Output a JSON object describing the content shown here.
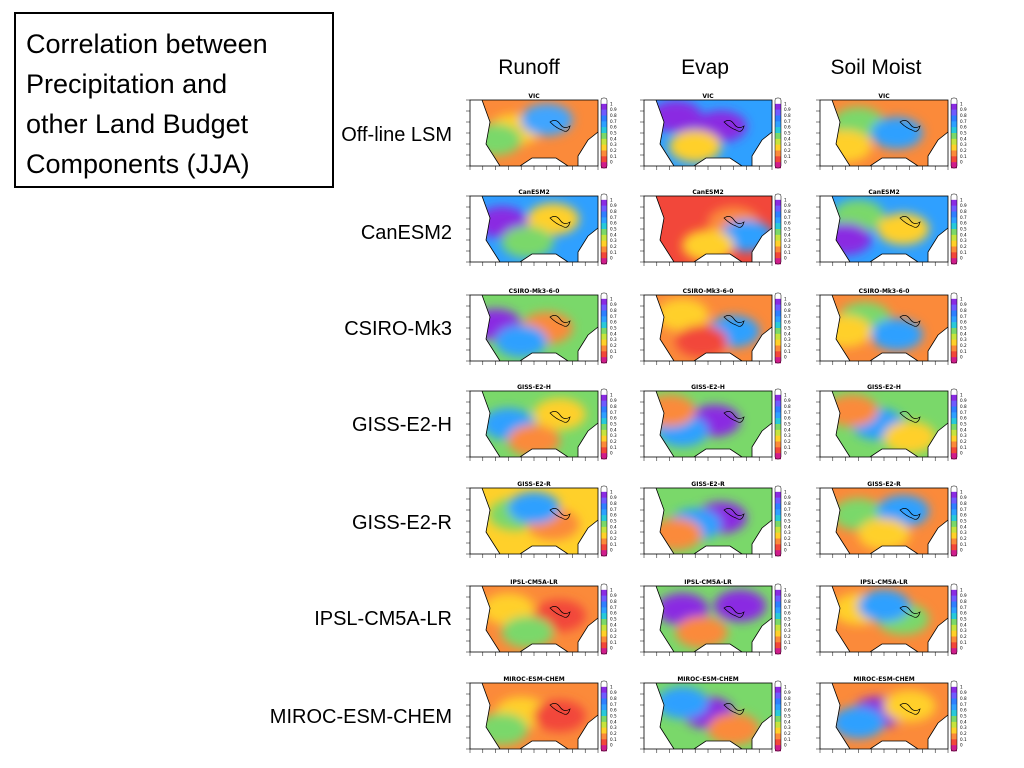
{
  "title_lines": [
    "Correlation between",
    "Precipitation and",
    "other Land Budget",
    "Components (JJA)"
  ],
  "columns": [
    "Runoff",
    "Evap",
    "Soil Moist"
  ],
  "rows": [
    {
      "label": "Off-line LSM",
      "panel_title": "VIC",
      "fields": [
        {
          "base": "#fb8a3a",
          "blobs": [
            [
              "#ffd02a",
              0.35,
              0.45
            ],
            [
              "#7ad86a",
              0.2,
              0.6
            ],
            [
              "#3fa5ff",
              0.6,
              0.3
            ]
          ]
        },
        {
          "base": "#2fa0ff",
          "blobs": [
            [
              "#8a2be2",
              0.25,
              0.25
            ],
            [
              "#8a2be2",
              0.6,
              0.4
            ],
            [
              "#ffd02a",
              0.4,
              0.7
            ]
          ]
        },
        {
          "base": "#fb8a3a",
          "blobs": [
            [
              "#7ad86a",
              0.3,
              0.35
            ],
            [
              "#2fa0ff",
              0.6,
              0.5
            ],
            [
              "#ffd02a",
              0.2,
              0.7
            ]
          ]
        }
      ]
    },
    {
      "label": "CanESM2",
      "panel_title": "CanESM2",
      "fields": [
        {
          "base": "#2fa0ff",
          "blobs": [
            [
              "#8a2be2",
              0.25,
              0.4
            ],
            [
              "#ffd02a",
              0.65,
              0.35
            ],
            [
              "#7ad86a",
              0.45,
              0.7
            ]
          ]
        },
        {
          "base": "#f2473a",
          "blobs": [
            [
              "#fb8a3a",
              0.7,
              0.4
            ],
            [
              "#2fa0ff",
              0.8,
              0.6
            ],
            [
              "#ffd02a",
              0.5,
              0.75
            ]
          ]
        },
        {
          "base": "#2fa0ff",
          "blobs": [
            [
              "#7ad86a",
              0.3,
              0.3
            ],
            [
              "#ffd02a",
              0.65,
              0.5
            ],
            [
              "#8a2be2",
              0.2,
              0.65
            ]
          ]
        }
      ]
    },
    {
      "label": "CSIRO-Mk3",
      "panel_title": "CSIRO-Mk3-6-0",
      "fields": [
        {
          "base": "#7ad86a",
          "blobs": [
            [
              "#8a2be2",
              0.2,
              0.45
            ],
            [
              "#fb8a3a",
              0.6,
              0.5
            ],
            [
              "#2fa0ff",
              0.4,
              0.7
            ]
          ]
        },
        {
          "base": "#fb8a3a",
          "blobs": [
            [
              "#ffd02a",
              0.3,
              0.3
            ],
            [
              "#2fa0ff",
              0.7,
              0.55
            ],
            [
              "#f2473a",
              0.45,
              0.7
            ]
          ]
        },
        {
          "base": "#fb8a3a",
          "blobs": [
            [
              "#7ad86a",
              0.35,
              0.35
            ],
            [
              "#2fa0ff",
              0.6,
              0.6
            ],
            [
              "#ffd02a",
              0.2,
              0.55
            ]
          ]
        }
      ]
    },
    {
      "label": "GISS-E2-H",
      "panel_title": "GISS-E2-H",
      "fields": [
        {
          "base": "#7ad86a",
          "blobs": [
            [
              "#2fa0ff",
              0.3,
              0.5
            ],
            [
              "#ffd02a",
              0.7,
              0.35
            ],
            [
              "#fb8a3a",
              0.5,
              0.75
            ]
          ]
        },
        {
          "base": "#7ad86a",
          "blobs": [
            [
              "#8a2be2",
              0.55,
              0.45
            ],
            [
              "#2fa0ff",
              0.3,
              0.6
            ],
            [
              "#fb8a3a",
              0.2,
              0.3
            ]
          ]
        },
        {
          "base": "#7ad86a",
          "blobs": [
            [
              "#2fa0ff",
              0.45,
              0.5
            ],
            [
              "#ffd02a",
              0.7,
              0.7
            ],
            [
              "#fb8a3a",
              0.25,
              0.3
            ]
          ]
        }
      ]
    },
    {
      "label": "GISS-E2-R",
      "panel_title": "GISS-E2-R",
      "fields": [
        {
          "base": "#ffd02a",
          "blobs": [
            [
              "#7ad86a",
              0.35,
              0.4
            ],
            [
              "#fb8a3a",
              0.65,
              0.55
            ],
            [
              "#2fa0ff",
              0.5,
              0.3
            ]
          ]
        },
        {
          "base": "#7ad86a",
          "blobs": [
            [
              "#8a2be2",
              0.6,
              0.45
            ],
            [
              "#2fa0ff",
              0.4,
              0.55
            ],
            [
              "#fb8a3a",
              0.25,
              0.7
            ]
          ]
        },
        {
          "base": "#fb8a3a",
          "blobs": [
            [
              "#7ad86a",
              0.3,
              0.4
            ],
            [
              "#2fa0ff",
              0.65,
              0.35
            ],
            [
              "#ffd02a",
              0.5,
              0.7
            ]
          ]
        }
      ]
    },
    {
      "label": "IPSL-CM5A-LR",
      "panel_title": "IPSL-CM5A-LR",
      "fields": [
        {
          "base": "#fb8a3a",
          "blobs": [
            [
              "#ffd02a",
              0.3,
              0.35
            ],
            [
              "#f2473a",
              0.7,
              0.45
            ],
            [
              "#7ad86a",
              0.45,
              0.7
            ]
          ]
        },
        {
          "base": "#7ad86a",
          "blobs": [
            [
              "#8a2be2",
              0.75,
              0.3
            ],
            [
              "#8a2be2",
              0.3,
              0.35
            ],
            [
              "#fb8a3a",
              0.45,
              0.7
            ]
          ]
        },
        {
          "base": "#fb8a3a",
          "blobs": [
            [
              "#ffd02a",
              0.3,
              0.35
            ],
            [
              "#7ad86a",
              0.65,
              0.5
            ],
            [
              "#2fa0ff",
              0.5,
              0.3
            ]
          ]
        }
      ]
    },
    {
      "label": "MIROC-ESM-CHEM",
      "panel_title": "MIROC-ESM-CHEM",
      "fields": [
        {
          "base": "#fb8a3a",
          "blobs": [
            [
              "#ffd02a",
              0.4,
              0.45
            ],
            [
              "#f2473a",
              0.7,
              0.5
            ],
            [
              "#7ad86a",
              0.25,
              0.7
            ]
          ]
        },
        {
          "base": "#7ad86a",
          "blobs": [
            [
              "#8a2be2",
              0.5,
              0.45
            ],
            [
              "#2fa0ff",
              0.3,
              0.3
            ],
            [
              "#fb8a3a",
              0.7,
              0.7
            ]
          ]
        },
        {
          "base": "#fb8a3a",
          "blobs": [
            [
              "#8a2be2",
              0.45,
              0.45
            ],
            [
              "#2fa0ff",
              0.3,
              0.6
            ],
            [
              "#ffd02a",
              0.7,
              0.35
            ]
          ]
        }
      ]
    }
  ],
  "colorbar_colors": [
    "#ffffff",
    "#8a2be2",
    "#6f5bff",
    "#2f7fff",
    "#2fa0ff",
    "#29c9d9",
    "#7ad86a",
    "#c6e33e",
    "#ffd02a",
    "#fb8a3a",
    "#f2473a",
    "#d01c8b"
  ],
  "colorbar_labels": [
    "1",
    "0.9",
    "0.8",
    "0.7",
    "0.6",
    "0.5",
    "0.4",
    "0.3",
    "0.2",
    "0.1",
    "0"
  ]
}
